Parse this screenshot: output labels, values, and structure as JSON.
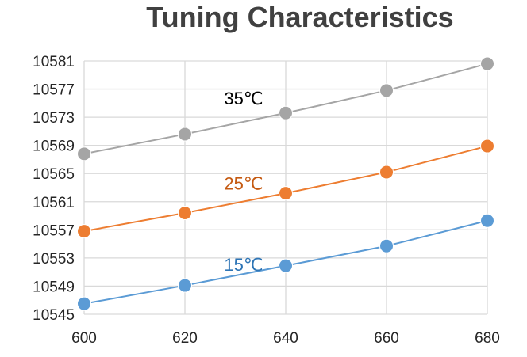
{
  "chart_data": {
    "type": "line",
    "title": "Tuning Characteristics",
    "xlabel": "",
    "ylabel": "",
    "x": [
      600,
      620,
      640,
      660,
      680
    ],
    "xlim": [
      600,
      680
    ],
    "ylim": [
      10545,
      10581
    ],
    "x_ticks": [
      "600",
      "620",
      "640",
      "660",
      "680"
    ],
    "y_ticks": [
      "10545",
      "10549",
      "10553",
      "10557",
      "10561",
      "10565",
      "10569",
      "10573",
      "10577",
      "10581"
    ],
    "grid": true,
    "legend": "none",
    "series": [
      {
        "name": "35℃",
        "color": "#A5A5A5",
        "label_color": "#000000",
        "values": [
          10567.8,
          10570.6,
          10573.6,
          10576.8,
          10580.6
        ]
      },
      {
        "name": "25℃",
        "color": "#ED7D31",
        "label_color": "#C55A11",
        "values": [
          10556.8,
          10559.4,
          10562.2,
          10565.2,
          10568.9
        ]
      },
      {
        "name": "15℃",
        "color": "#5B9BD5",
        "label_color": "#2E75B6",
        "values": [
          10546.5,
          10549.1,
          10551.9,
          10554.7,
          10558.3
        ]
      }
    ]
  }
}
